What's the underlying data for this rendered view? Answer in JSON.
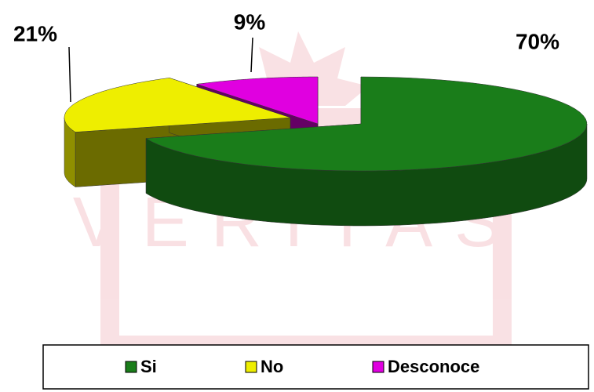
{
  "chart_data": {
    "type": "pie3d",
    "categories": [
      "Si",
      "No",
      "Desconoce"
    ],
    "values": [
      70,
      21,
      9
    ],
    "value_labels": [
      "70%",
      "21%",
      "9%"
    ],
    "colors": [
      "#1a7d1a",
      "#eeee00",
      "#e000e0"
    ],
    "legend": "bottom"
  }
}
